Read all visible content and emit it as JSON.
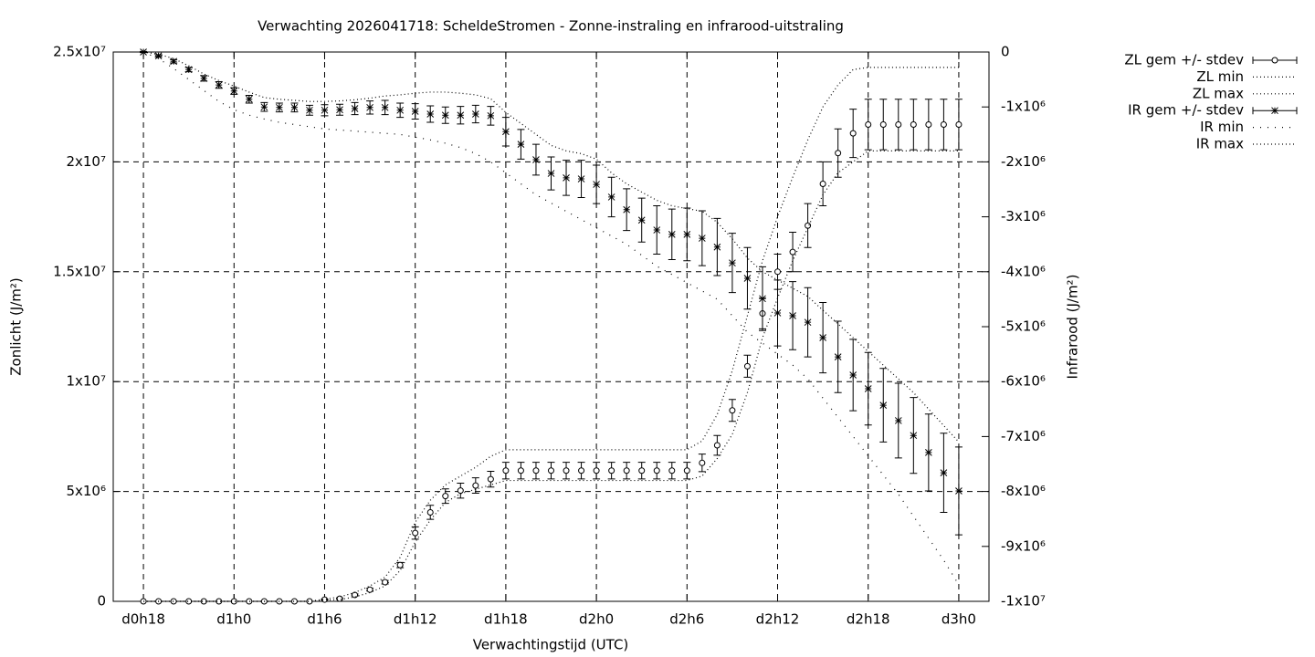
{
  "chart_data": {
    "type": "errorbar-line",
    "title": "Verwachting 2026041718: ScheldeStromen - Zonne-instraling en infrarood-uitstraling",
    "xlabel": "Verwachtingstijd (UTC)",
    "ylabel": "Zonlicht (J/m²)",
    "y2label": "Infrarood (J/m²)",
    "categories": [
      "d0h18",
      null,
      null,
      null,
      null,
      null,
      "d1h0",
      null,
      null,
      null,
      null,
      null,
      "d1h6",
      null,
      null,
      null,
      null,
      null,
      "d1h12",
      null,
      null,
      null,
      null,
      null,
      "d1h18",
      null,
      null,
      null,
      null,
      null,
      "d2h0",
      null,
      null,
      null,
      null,
      null,
      "d2h6",
      null,
      null,
      null,
      null,
      null,
      "d2h12",
      null,
      null,
      null,
      null,
      null,
      "d2h18",
      null,
      null,
      null,
      null,
      null,
      "d3h0"
    ],
    "ylim": [
      0,
      25000000.0
    ],
    "yticks": [
      0,
      {
        "value": 5000000.0,
        "label": "5x10⁶"
      },
      {
        "value": 10000000.0,
        "label": "1x10⁷"
      },
      {
        "value": 15000000.0,
        "label": "1.5x10⁷"
      },
      {
        "value": 20000000.0,
        "label": "2x10⁷"
      },
      {
        "value": 25000000.0,
        "label": "2.5x10⁷"
      }
    ],
    "y2lim": [
      -10000000.0,
      0
    ],
    "y2ticks": [
      0,
      {
        "value": -1000000.0,
        "label": "-1x10⁶"
      },
      {
        "value": -2000000.0,
        "label": "-2x10⁶"
      },
      {
        "value": -3000000.0,
        "label": "-3x10⁶"
      },
      {
        "value": -4000000.0,
        "label": "-4x10⁶"
      },
      {
        "value": -5000000.0,
        "label": "-5x10⁶"
      },
      {
        "value": -6000000.0,
        "label": "-6x10⁶"
      },
      {
        "value": -7000000.0,
        "label": "-7x10⁶"
      },
      {
        "value": -8000000.0,
        "label": "-8x10⁶"
      },
      {
        "value": -9000000.0,
        "label": "-9x10⁶"
      },
      {
        "value": -10000000.0,
        "label": "-1x10⁷"
      }
    ],
    "grid": true,
    "legend": "outside-top-right",
    "series": [
      {
        "name": "ZL gem +/- stdev",
        "color": "#000000",
        "axis": "y",
        "marker": "circle",
        "values": [
          0,
          0,
          0,
          0,
          0,
          0,
          0,
          0,
          0,
          0,
          0,
          0,
          80000.0,
          120000.0,
          290000.0,
          530000.0,
          870000.0,
          1650000.0,
          3110000.0,
          4050000.0,
          4790000.0,
          5040000.0,
          5270000.0,
          5560000.0,
          5950000.0,
          5950000.0,
          5950000.0,
          5950000.0,
          5950000.0,
          5950000.0,
          5950000.0,
          5950000.0,
          5950000.0,
          5950000.0,
          5950000.0,
          5950000.0,
          5950000.0,
          6300000.0,
          7100000.0,
          8690000.0,
          10700000.0,
          13100000.0,
          15000000.0,
          15900000.0,
          17100000.0,
          19000000.0,
          20400000.0,
          21300000.0,
          21700000.0,
          21700000.0,
          21700000.0,
          21700000.0,
          21700000.0,
          21700000.0,
          21700000.0
        ],
        "errors": [
          0,
          0,
          0,
          0,
          0,
          0,
          0,
          0,
          0,
          0,
          0,
          0,
          20000.0,
          30000.0,
          40000.0,
          60000.0,
          80000.0,
          120000.0,
          280000.0,
          320000.0,
          330000.0,
          340000.0,
          350000.0,
          360000.0,
          380000.0,
          380000.0,
          380000.0,
          380000.0,
          380000.0,
          380000.0,
          380000.0,
          380000.0,
          380000.0,
          380000.0,
          380000.0,
          380000.0,
          380000.0,
          400000.0,
          450000.0,
          500000.0,
          500000.0,
          700000.0,
          800000.0,
          900000.0,
          1000000.0,
          1000000.0,
          1100000.0,
          1100000.0,
          1150000.0,
          1150000.0,
          1150000.0,
          1150000.0,
          1150000.0,
          1150000.0,
          1150000.0
        ]
      },
      {
        "name": "ZL min",
        "color": "#000000",
        "axis": "y",
        "dash": "dotted",
        "values": [
          0,
          0,
          0,
          0,
          0,
          0,
          0,
          0,
          0,
          0,
          0,
          0,
          50000.0,
          80000.0,
          200000.0,
          400000.0,
          700000.0,
          1400000.0,
          2700000.0,
          3700000.0,
          4500000.0,
          4900000.0,
          5100000.0,
          5300000.0,
          5500000.0,
          5500000.0,
          5500000.0,
          5500000.0,
          5500000.0,
          5500000.0,
          5500000.0,
          5500000.0,
          5500000.0,
          5500000.0,
          5500000.0,
          5500000.0,
          5500000.0,
          5700000.0,
          6500000.0,
          7600000.0,
          9500000.0,
          12000000.0,
          13800000.0,
          15500000.0,
          17000000.0,
          18500000.0,
          19500000.0,
          20000000.0,
          20500000.0,
          20500000.0,
          20500000.0,
          20500000.0,
          20500000.0,
          20500000.0,
          20500000.0
        ]
      },
      {
        "name": "ZL max",
        "color": "#000000",
        "axis": "y",
        "dash": "dotted",
        "values": [
          0,
          0,
          0,
          0,
          0,
          0,
          0,
          0,
          0,
          0,
          0,
          0,
          100000.0,
          200000.0,
          400000.0,
          700000.0,
          1100000.0,
          2000000.0,
          3600000.0,
          4600000.0,
          5300000.0,
          5700000.0,
          6100000.0,
          6600000.0,
          6900000.0,
          6900000.0,
          6900000.0,
          6900000.0,
          6900000.0,
          6900000.0,
          6900000.0,
          6900000.0,
          6900000.0,
          6900000.0,
          6900000.0,
          6900000.0,
          6900000.0,
          7300000.0,
          8500000.0,
          10500000.0,
          13000000.0,
          15500000.0,
          17500000.0,
          19300000.0,
          21000000.0,
          22500000.0,
          23500000.0,
          24200000.0,
          24300000.0,
          24300000.0,
          24300000.0,
          24300000.0,
          24300000.0,
          24300000.0,
          24300000.0
        ]
      },
      {
        "name": "IR gem +/- stdev",
        "color": "#000000",
        "axis": "y2",
        "marker": "asterisk",
        "values": [
          0,
          -70000.0,
          -170000.0,
          -320000.0,
          -480000.0,
          -600000.0,
          -710000.0,
          -860000.0,
          -1000000.0,
          -1010000.0,
          -1010000.0,
          -1060000.0,
          -1060000.0,
          -1050000.0,
          -1030000.0,
          -1010000.0,
          -1010000.0,
          -1060000.0,
          -1080000.0,
          -1130000.0,
          -1150000.0,
          -1150000.0,
          -1130000.0,
          -1160000.0,
          -1450000.0,
          -1680000.0,
          -1960000.0,
          -2210000.0,
          -2290000.0,
          -2310000.0,
          -2410000.0,
          -2640000.0,
          -2870000.0,
          -3060000.0,
          -3240000.0,
          -3320000.0,
          -3320000.0,
          -3390000.0,
          -3550000.0,
          -3840000.0,
          -4120000.0,
          -4490000.0,
          -4750000.0,
          -4800000.0,
          -4920000.0,
          -5200000.0,
          -5550000.0,
          -5880000.0,
          -6130000.0,
          -6430000.0,
          -6710000.0,
          -6980000.0,
          -7290000.0,
          -7660000.0,
          -7990000.0
        ],
        "errors": [
          10000.0,
          20000.0,
          30000.0,
          40000.0,
          50000.0,
          60000.0,
          60000.0,
          70000.0,
          80000.0,
          80000.0,
          80000.0,
          90000.0,
          100000.0,
          100000.0,
          110000.0,
          120000.0,
          130000.0,
          130000.0,
          140000.0,
          150000.0,
          150000.0,
          160000.0,
          160000.0,
          170000.0,
          260000.0,
          270000.0,
          280000.0,
          300000.0,
          320000.0,
          340000.0,
          350000.0,
          360000.0,
          380000.0,
          400000.0,
          440000.0,
          460000.0,
          480000.0,
          500000.0,
          520000.0,
          540000.0,
          560000.0,
          580000.0,
          600000.0,
          620000.0,
          630000.0,
          640000.0,
          650000.0,
          650000.0,
          660000.0,
          670000.0,
          680000.0,
          690000.0,
          700000.0,
          720000.0,
          800000.0
        ]
      },
      {
        "name": "IR min",
        "color": "#000000",
        "axis": "y2",
        "dash": "sparse",
        "values": [
          0,
          -120000.0,
          -300000.0,
          -500000.0,
          -700000.0,
          -900000.0,
          -1050000.0,
          -1150000.0,
          -1220000.0,
          -1280000.0,
          -1320000.0,
          -1360000.0,
          -1400000.0,
          -1420000.0,
          -1440000.0,
          -1460000.0,
          -1480000.0,
          -1500000.0,
          -1550000.0,
          -1600000.0,
          -1660000.0,
          -1740000.0,
          -1850000.0,
          -2000000.0,
          -2200000.0,
          -2400000.0,
          -2600000.0,
          -2750000.0,
          -2900000.0,
          -3050000.0,
          -3200000.0,
          -3350000.0,
          -3500000.0,
          -3700000.0,
          -3900000.0,
          -4050000.0,
          -4200000.0,
          -4350000.0,
          -4500000.0,
          -4800000.0,
          -5100000.0,
          -5300000.0,
          -5500000.0,
          -5700000.0,
          -5950000.0,
          -6300000.0,
          -6650000.0,
          -7000000.0,
          -7350000.0,
          -7700000.0,
          -8050000.0,
          -8450000.0,
          -8850000.0,
          -9250000.0,
          -9700000.0
        ]
      },
      {
        "name": "IR max",
        "color": "#000000",
        "axis": "y2",
        "dash": "dotted",
        "values": [
          0,
          -40000.0,
          -120000.0,
          -250000.0,
          -400000.0,
          -520000.0,
          -620000.0,
          -730000.0,
          -830000.0,
          -860000.0,
          -880000.0,
          -900000.0,
          -900000.0,
          -890000.0,
          -870000.0,
          -840000.0,
          -800000.0,
          -780000.0,
          -750000.0,
          -730000.0,
          -730000.0,
          -750000.0,
          -780000.0,
          -850000.0,
          -1100000.0,
          -1300000.0,
          -1500000.0,
          -1700000.0,
          -1800000.0,
          -1850000.0,
          -1950000.0,
          -2200000.0,
          -2400000.0,
          -2550000.0,
          -2700000.0,
          -2800000.0,
          -2850000.0,
          -2900000.0,
          -3100000.0,
          -3400000.0,
          -3750000.0,
          -4000000.0,
          -4150000.0,
          -4300000.0,
          -4450000.0,
          -4700000.0,
          -4950000.0,
          -5200000.0,
          -5450000.0,
          -5700000.0,
          -5950000.0,
          -6200000.0,
          -6500000.0,
          -6800000.0,
          -7100000.0
        ]
      }
    ]
  }
}
